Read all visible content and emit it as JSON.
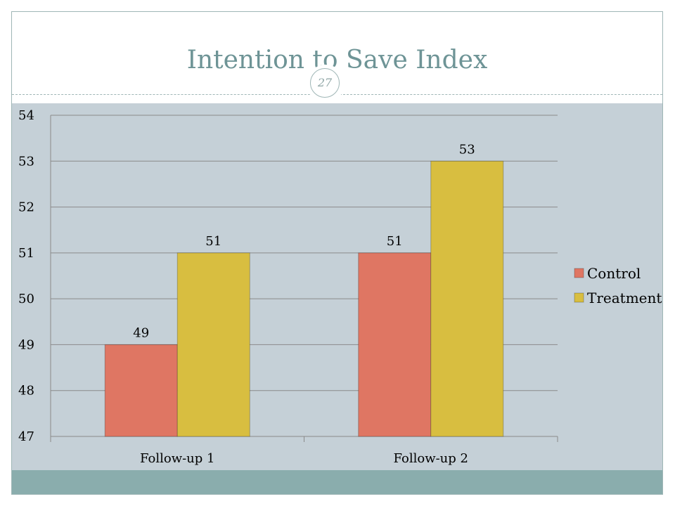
{
  "slide": {
    "title": "Intention to Save Index",
    "page_number": "27"
  },
  "colors": {
    "control": "#df7663",
    "treatment": "#d8be40",
    "plot_background": "#c5d0d7",
    "accent": "#6e9496"
  },
  "chart_data": {
    "type": "bar",
    "title": "",
    "xlabel": "",
    "ylabel": "",
    "categories": [
      "Follow-up 1",
      "Follow-up 2"
    ],
    "series": [
      {
        "name": "Control",
        "values": [
          49,
          51
        ]
      },
      {
        "name": "Treatment",
        "values": [
          51,
          53
        ]
      }
    ],
    "ylim": [
      47,
      54
    ],
    "yticks": [
      47,
      48,
      49,
      50,
      51,
      52,
      53,
      54
    ],
    "grid": true,
    "legend": "right",
    "data_labels": true
  }
}
